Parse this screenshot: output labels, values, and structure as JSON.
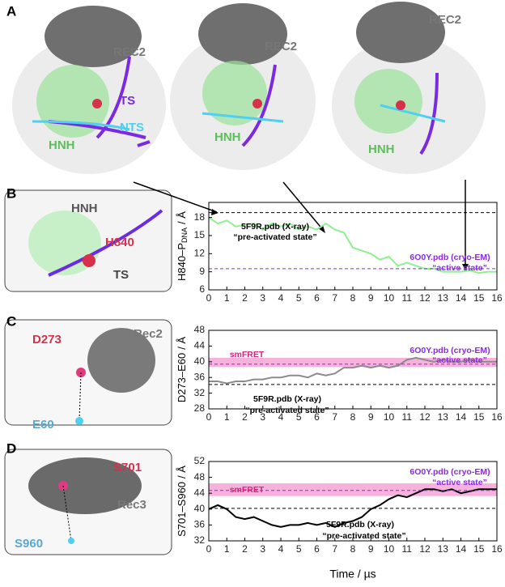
{
  "panels": {
    "letters": [
      "A",
      "B",
      "C",
      "D"
    ],
    "a_labels": [
      "REC2",
      "TS",
      "NTS",
      "HNH",
      "REC2",
      "HNH",
      "REC2",
      "HNH"
    ],
    "b_labels": [
      "HNH",
      "H840",
      "TS"
    ],
    "c_labels": [
      "D273",
      "Rec2",
      "E60"
    ],
    "d_labels": [
      "S701",
      "Rec3",
      "S960"
    ]
  },
  "chart_data": [
    {
      "type": "line",
      "ylabel": [
        "H840–P",
        "DNA",
        "/ Å"
      ],
      "x": [
        0,
        0.5,
        1,
        1.5,
        2,
        2.5,
        3,
        3.5,
        4,
        4.5,
        5,
        5.5,
        6,
        6.5,
        7,
        7.5,
        8,
        8.5,
        9,
        9.5,
        10,
        10.5,
        11,
        11.5,
        12,
        12.5,
        13,
        13.5,
        14,
        14.5,
        15,
        15.5,
        16
      ],
      "series": [
        {
          "color": "#8ff08f",
          "values": [
            18,
            17,
            17.5,
            16.5,
            16.8,
            17,
            16,
            17,
            16.5,
            17,
            16,
            16.5,
            16,
            17,
            16,
            15.5,
            13,
            12.5,
            12,
            11,
            11.5,
            10,
            10.5,
            10,
            9.5,
            9.5,
            9,
            9,
            9,
            9.2,
            8.8,
            9,
            9
          ]
        }
      ],
      "xlim": [
        0,
        16
      ],
      "ylim": [
        6,
        20.5
      ],
      "xticks": [
        0,
        1,
        2,
        3,
        4,
        5,
        6,
        7,
        8,
        9,
        10,
        11,
        12,
        13,
        14,
        15,
        16
      ],
      "yticks": [
        6,
        9,
        12,
        15,
        18
      ],
      "reference_lines": [
        {
          "y": 18.8,
          "color": "#000000"
        },
        {
          "y": 9.5,
          "color": "#8a2be2"
        }
      ],
      "annotations": [
        {
          "text": "5F9R.pdb (X-ray)",
          "color": "#000000"
        },
        {
          "text": "“pre-activated state”",
          "color": "#000000"
        },
        {
          "text": "6O0Y.pdb (cryo-EM)",
          "color": "#8a2be2"
        },
        {
          "text": "“active state”",
          "color": "#8a2be2"
        }
      ]
    },
    {
      "type": "line",
      "ylabel": [
        "D273–E60",
        "",
        "/ Å"
      ],
      "x": [
        0,
        0.5,
        1,
        1.5,
        2,
        2.5,
        3,
        3.5,
        4,
        4.5,
        5,
        5.5,
        6,
        6.5,
        7,
        7.5,
        8,
        8.5,
        9,
        9.5,
        10,
        10.5,
        11,
        11.5,
        12,
        12.5,
        13,
        13.5,
        14,
        14.5,
        15,
        15.5,
        16
      ],
      "series": [
        {
          "color": "#8c8c8c",
          "values": [
            35,
            35,
            34.5,
            35,
            35,
            35.5,
            35.5,
            36,
            36,
            36.5,
            36.5,
            36,
            37,
            36.5,
            37,
            38.5,
            38.5,
            39,
            38.5,
            39,
            38.5,
            39,
            40.5,
            41,
            40.5,
            40,
            40.5,
            40,
            40,
            40.5,
            40,
            40,
            40
          ]
        }
      ],
      "xlim": [
        0,
        16
      ],
      "ylim": [
        28,
        48
      ],
      "xticks": [
        0,
        1,
        2,
        3,
        4,
        5,
        6,
        7,
        8,
        9,
        10,
        11,
        12,
        13,
        14,
        15,
        16
      ],
      "yticks": [
        28,
        32,
        36,
        40,
        44,
        48
      ],
      "band": {
        "range": [
          38.7,
          41
        ],
        "color": "#f5a3d6"
      },
      "reference_lines": [
        {
          "y": 34.2,
          "color": "#000000"
        },
        {
          "y": 39.4,
          "color": "#8a2be2"
        }
      ],
      "annotations": [
        {
          "text": "smFRET",
          "color": "#d6257a"
        },
        {
          "text": "6O0Y.pdb (cryo-EM)",
          "color": "#8a2be2"
        },
        {
          "text": "“active state”",
          "color": "#8a2be2"
        },
        {
          "text": "5F9R.pdb (X-ray)",
          "color": "#000000"
        },
        {
          "text": "“pre-activated state”",
          "color": "#000000"
        }
      ]
    },
    {
      "type": "line",
      "ylabel": [
        "S701–S960",
        "",
        "/ Å"
      ],
      "xlabel": "Time / µs",
      "x": [
        0,
        0.5,
        1,
        1.5,
        2,
        2.5,
        3,
        3.5,
        4,
        4.5,
        5,
        5.5,
        6,
        6.5,
        7,
        7.5,
        8,
        8.5,
        9,
        9.5,
        10,
        10.5,
        11,
        11.5,
        12,
        12.5,
        13,
        13.5,
        14,
        14.5,
        15,
        15.5,
        16
      ],
      "series": [
        {
          "color": "#000000",
          "values": [
            40,
            41,
            40,
            38,
            37.5,
            38,
            37,
            36,
            35.5,
            36,
            36,
            36.5,
            36,
            36.5,
            35.5,
            36.5,
            37,
            38,
            40,
            41,
            42.5,
            43.5,
            43,
            44,
            45,
            45,
            44.5,
            45,
            44,
            44.5,
            45,
            45,
            45
          ]
        }
      ],
      "xlim": [
        0,
        16
      ],
      "ylim": [
        32,
        52
      ],
      "xticks": [
        0,
        1,
        2,
        3,
        4,
        5,
        6,
        7,
        8,
        9,
        10,
        11,
        12,
        13,
        14,
        15,
        16
      ],
      "yticks": [
        32,
        36,
        40,
        44,
        48,
        52
      ],
      "band": {
        "range": [
          43.3,
          46.5
        ],
        "color": "#f5a3d6"
      },
      "reference_lines": [
        {
          "y": 40.2,
          "color": "#000000"
        },
        {
          "y": 44.7,
          "color": "#8a2be2"
        }
      ],
      "annotations": [
        {
          "text": "smFRET",
          "color": "#d6257a"
        },
        {
          "text": "6O0Y.pdb (cryo-EM)",
          "color": "#8a2be2"
        },
        {
          "text": "“active state”",
          "color": "#8a2be2"
        },
        {
          "text": "5F9R.pdb (X-ray)",
          "color": "#000000"
        },
        {
          "text": "“pre-activated state”",
          "color": "#000000"
        }
      ]
    }
  ]
}
